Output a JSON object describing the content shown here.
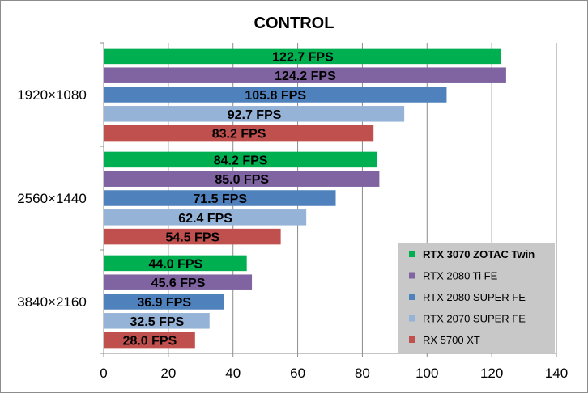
{
  "chart_data": {
    "type": "bar",
    "orientation": "horizontal",
    "title": "CONTROL",
    "xlabel": "",
    "ylabel": "",
    "xlim": [
      0,
      140
    ],
    "x_ticks": [
      "0",
      "20",
      "40",
      "60",
      "80",
      "100",
      "120",
      "140"
    ],
    "grid": true,
    "legend_position": "right",
    "value_suffix": " FPS",
    "categories": [
      "1920×1080",
      "2560×1440",
      "3840×2160"
    ],
    "series": [
      {
        "name": "RTX 3070 ZOTAC Twin",
        "color": "#00b050",
        "values": [
          122.7,
          84.2,
          44.0
        ],
        "labels": [
          "122.7 FPS",
          "84.2 FPS",
          "44.0 FPS"
        ]
      },
      {
        "name": "RTX 2080 Ti FE",
        "color": "#8064a2",
        "values": [
          124.2,
          85.0,
          45.6
        ],
        "labels": [
          "124.2 FPS",
          "85.0 FPS",
          "45.6 FPS"
        ]
      },
      {
        "name": "RTX 2080 SUPER FE",
        "color": "#4f81bd",
        "values": [
          105.8,
          71.5,
          36.9
        ],
        "labels": [
          "105.8 FPS",
          "71.5 FPS",
          "36.9 FPS"
        ]
      },
      {
        "name": "RTX 2070 SUPER FE",
        "color": "#95b3d7",
        "values": [
          92.7,
          62.4,
          32.5
        ],
        "labels": [
          "92.7 FPS",
          "62.4 FPS",
          "32.5 FPS"
        ]
      },
      {
        "name": "RX 5700 XT",
        "color": "#c0504d",
        "values": [
          83.2,
          54.5,
          28.0
        ],
        "labels": [
          "83.2 FPS",
          "54.5 FPS",
          "28.0 FPS"
        ]
      }
    ],
    "legend_bold_first": true
  }
}
